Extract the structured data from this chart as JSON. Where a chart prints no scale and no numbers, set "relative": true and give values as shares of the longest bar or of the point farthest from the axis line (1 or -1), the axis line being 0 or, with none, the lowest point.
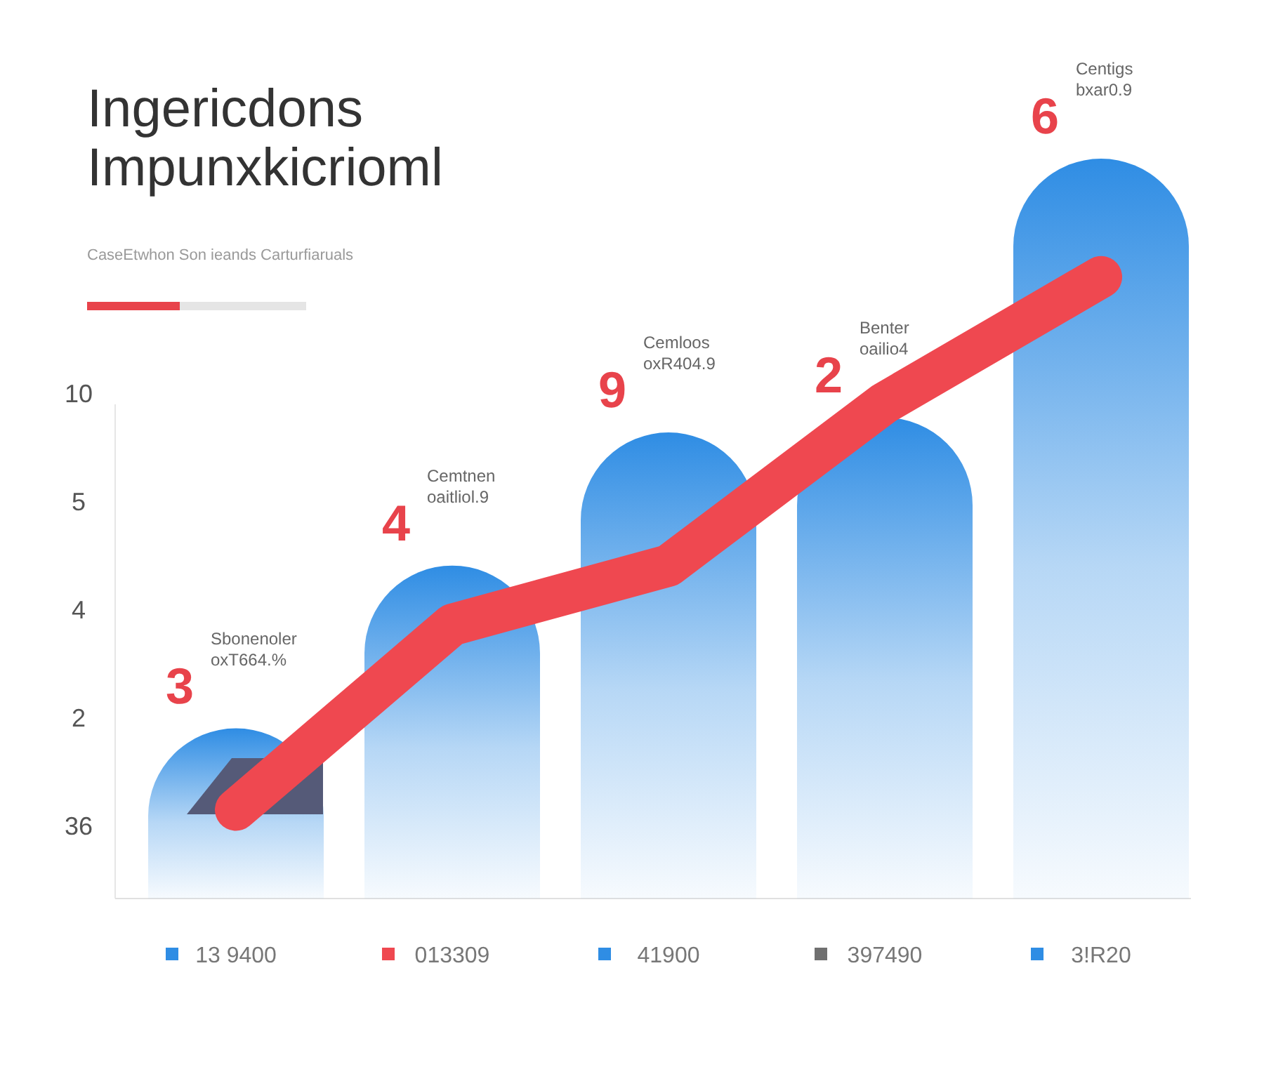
{
  "chart_data": {
    "type": "bar",
    "title": "Ingericdons\nImpunxkicrioml",
    "subtitle": "CaseEtwhon Son ieands Carturfiaruals",
    "relative": true,
    "categories": [
      "13 9400",
      "013309",
      "41900",
      "397490",
      "3!R20"
    ],
    "series": [
      {
        "color": "#2f8de4",
        "values": [
          0.23,
          0.45,
          0.63,
          0.65,
          1.0
        ]
      },
      {
        "type": "line",
        "color": "#ef4850",
        "values": [
          0.12,
          0.37,
          0.45,
          0.67,
          0.84
        ]
      }
    ],
    "annotations": [
      "36",
      "2",
      "4",
      "5",
      "10",
      "3\nSbonenoler\noxT664.%",
      "4\nCemtnen\noaitliol.9",
      "9\nCemloos\noxR404.9",
      "2\nBenter\noailio4",
      "6\nCentigs\nbxar0.9"
    ]
  }
}
